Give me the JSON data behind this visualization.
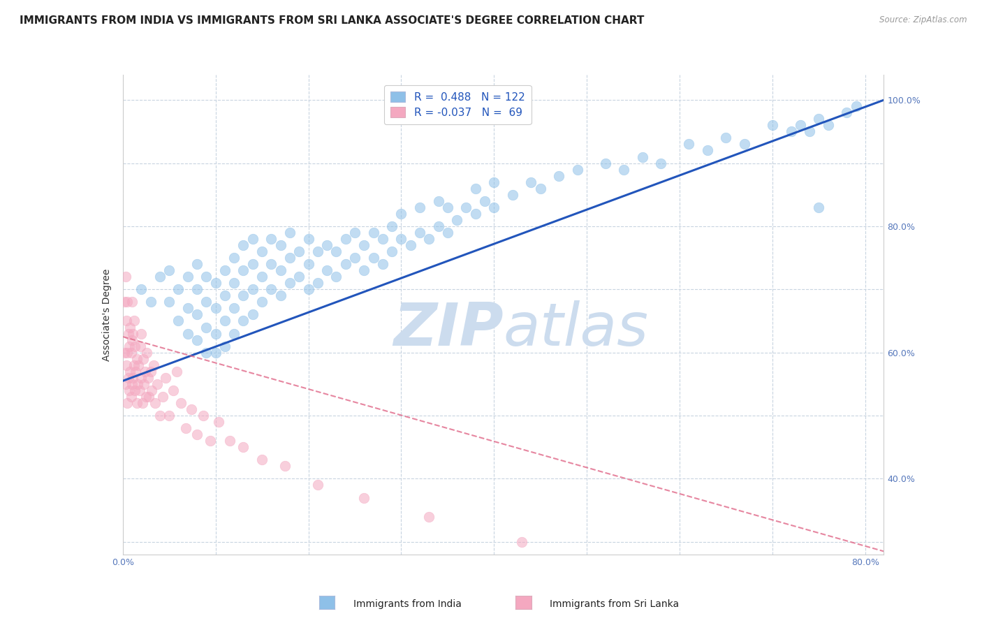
{
  "title": "IMMIGRANTS FROM INDIA VS IMMIGRANTS FROM SRI LANKA ASSOCIATE'S DEGREE CORRELATION CHART",
  "source": "Source: ZipAtlas.com",
  "ylabel": "Associate's Degree",
  "india_R": 0.488,
  "india_N": 122,
  "srilanka_R": -0.037,
  "srilanka_N": 69,
  "india_color": "#8ec0e8",
  "srilanka_color": "#f4a8c0",
  "india_line_color": "#2255bb",
  "srilanka_line_color": "#e06888",
  "watermark_zip": "ZIP",
  "watermark_atlas": "atlas",
  "watermark_color": "#ccdcee",
  "legend_india_label": "Immigrants from India",
  "legend_srilanka_label": "Immigrants from Sri Lanka",
  "background_color": "#ffffff",
  "grid_color": "#c8d4e0",
  "xlim": [
    0.0,
    0.82
  ],
  "ylim": [
    0.28,
    1.04
  ],
  "title_fontsize": 11,
  "axis_label_fontsize": 10,
  "tick_fontsize": 9,
  "india_trendline_x": [
    0.0,
    0.82
  ],
  "india_trendline_y": [
    0.555,
    1.0
  ],
  "srilanka_trendline_x": [
    0.0,
    0.82
  ],
  "srilanka_trendline_y": [
    0.625,
    0.285
  ],
  "india_points_x": [
    0.02,
    0.03,
    0.04,
    0.05,
    0.05,
    0.06,
    0.06,
    0.07,
    0.07,
    0.07,
    0.08,
    0.08,
    0.08,
    0.08,
    0.09,
    0.09,
    0.09,
    0.09,
    0.1,
    0.1,
    0.1,
    0.1,
    0.11,
    0.11,
    0.11,
    0.11,
    0.12,
    0.12,
    0.12,
    0.12,
    0.13,
    0.13,
    0.13,
    0.13,
    0.14,
    0.14,
    0.14,
    0.14,
    0.15,
    0.15,
    0.15,
    0.16,
    0.16,
    0.16,
    0.17,
    0.17,
    0.17,
    0.18,
    0.18,
    0.18,
    0.19,
    0.19,
    0.2,
    0.2,
    0.2,
    0.21,
    0.21,
    0.22,
    0.22,
    0.23,
    0.23,
    0.24,
    0.24,
    0.25,
    0.25,
    0.26,
    0.26,
    0.27,
    0.27,
    0.28,
    0.28,
    0.29,
    0.29,
    0.3,
    0.3,
    0.31,
    0.32,
    0.32,
    0.33,
    0.34,
    0.34,
    0.35,
    0.35,
    0.36,
    0.37,
    0.38,
    0.38,
    0.39,
    0.4,
    0.4,
    0.42,
    0.44,
    0.45,
    0.47,
    0.49,
    0.52,
    0.54,
    0.56,
    0.58,
    0.61,
    0.63,
    0.65,
    0.67,
    0.7,
    0.72,
    0.73,
    0.74,
    0.75,
    0.76,
    0.78,
    0.79,
    0.75
  ],
  "india_points_y": [
    0.7,
    0.68,
    0.72,
    0.68,
    0.73,
    0.65,
    0.7,
    0.63,
    0.67,
    0.72,
    0.62,
    0.66,
    0.7,
    0.74,
    0.6,
    0.64,
    0.68,
    0.72,
    0.6,
    0.63,
    0.67,
    0.71,
    0.61,
    0.65,
    0.69,
    0.73,
    0.63,
    0.67,
    0.71,
    0.75,
    0.65,
    0.69,
    0.73,
    0.77,
    0.66,
    0.7,
    0.74,
    0.78,
    0.68,
    0.72,
    0.76,
    0.7,
    0.74,
    0.78,
    0.69,
    0.73,
    0.77,
    0.71,
    0.75,
    0.79,
    0.72,
    0.76,
    0.7,
    0.74,
    0.78,
    0.71,
    0.76,
    0.73,
    0.77,
    0.72,
    0.76,
    0.74,
    0.78,
    0.75,
    0.79,
    0.73,
    0.77,
    0.75,
    0.79,
    0.74,
    0.78,
    0.76,
    0.8,
    0.78,
    0.82,
    0.77,
    0.79,
    0.83,
    0.78,
    0.8,
    0.84,
    0.79,
    0.83,
    0.81,
    0.83,
    0.82,
    0.86,
    0.84,
    0.83,
    0.87,
    0.85,
    0.87,
    0.86,
    0.88,
    0.89,
    0.9,
    0.89,
    0.91,
    0.9,
    0.93,
    0.92,
    0.94,
    0.93,
    0.96,
    0.95,
    0.96,
    0.95,
    0.97,
    0.96,
    0.98,
    0.99,
    0.83
  ],
  "srilanka_points_x": [
    0.002,
    0.002,
    0.003,
    0.003,
    0.004,
    0.004,
    0.005,
    0.005,
    0.005,
    0.006,
    0.006,
    0.007,
    0.007,
    0.008,
    0.008,
    0.009,
    0.009,
    0.01,
    0.01,
    0.01,
    0.011,
    0.011,
    0.012,
    0.012,
    0.013,
    0.013,
    0.014,
    0.015,
    0.015,
    0.016,
    0.017,
    0.018,
    0.019,
    0.02,
    0.02,
    0.021,
    0.022,
    0.023,
    0.024,
    0.025,
    0.026,
    0.027,
    0.028,
    0.03,
    0.031,
    0.033,
    0.035,
    0.037,
    0.04,
    0.043,
    0.046,
    0.05,
    0.054,
    0.058,
    0.063,
    0.068,
    0.074,
    0.08,
    0.087,
    0.094,
    0.103,
    0.115,
    0.13,
    0.15,
    0.175,
    0.21,
    0.26,
    0.33,
    0.43
  ],
  "srilanka_points_y": [
    0.6,
    0.68,
    0.55,
    0.72,
    0.58,
    0.65,
    0.52,
    0.6,
    0.68,
    0.56,
    0.63,
    0.54,
    0.61,
    0.57,
    0.64,
    0.53,
    0.6,
    0.55,
    0.62,
    0.68,
    0.56,
    0.63,
    0.58,
    0.65,
    0.54,
    0.61,
    0.57,
    0.52,
    0.59,
    0.55,
    0.58,
    0.54,
    0.61,
    0.56,
    0.63,
    0.52,
    0.59,
    0.55,
    0.57,
    0.53,
    0.6,
    0.56,
    0.53,
    0.57,
    0.54,
    0.58,
    0.52,
    0.55,
    0.5,
    0.53,
    0.56,
    0.5,
    0.54,
    0.57,
    0.52,
    0.48,
    0.51,
    0.47,
    0.5,
    0.46,
    0.49,
    0.46,
    0.45,
    0.43,
    0.42,
    0.39,
    0.37,
    0.34,
    0.3
  ]
}
